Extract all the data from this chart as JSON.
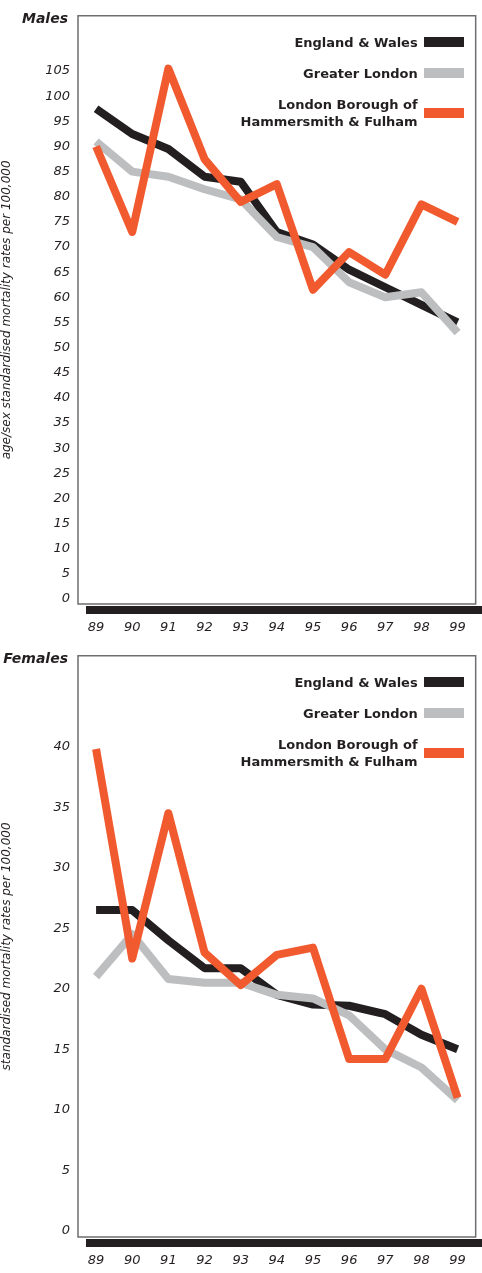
{
  "chart_data": [
    {
      "type": "line",
      "title": "Males",
      "ylabel": "age/sex standardised mortality rates per 100,000",
      "categories": [
        "89",
        "90",
        "91",
        "92",
        "93",
        "94",
        "95",
        "96",
        "97",
        "98",
        "99"
      ],
      "ylim": [
        -1,
        116
      ],
      "yticks": [
        0,
        5,
        10,
        15,
        20,
        25,
        30,
        35,
        40,
        45,
        50,
        55,
        60,
        65,
        70,
        75,
        80,
        85,
        90,
        95,
        100,
        105
      ],
      "legend": "top right",
      "series": [
        {
          "name": "England & Wales",
          "color": "#231f20",
          "values": [
            97.5,
            92.5,
            89.5,
            84,
            83,
            73,
            70.5,
            65.5,
            62,
            58.5,
            55
          ]
        },
        {
          "name": "Greater London",
          "color": "#bcbec0",
          "values": [
            91,
            85,
            84,
            81.5,
            79.5,
            72,
            70,
            63,
            60,
            61,
            53
          ]
        },
        {
          "name": "London Borough of Hammersmith & Fulham",
          "color": "#f15a2e",
          "values": [
            90,
            73,
            105.5,
            87.5,
            79,
            82.5,
            61.5,
            69,
            64.5,
            78.5,
            75
          ]
        }
      ]
    },
    {
      "type": "line",
      "title": "Females",
      "ylabel": "standardised mortality rates per 100,000",
      "categories": [
        "89",
        "90",
        "91",
        "92",
        "93",
        "94",
        "95",
        "96",
        "97",
        "98",
        "99"
      ],
      "ylim": [
        -0.5,
        47.5
      ],
      "yticks": [
        0,
        5,
        10,
        15,
        20,
        25,
        30,
        35,
        40
      ],
      "legend": "top right",
      "series": [
        {
          "name": "England & Wales",
          "color": "#231f20",
          "values": [
            26.5,
            26.5,
            24,
            21.7,
            21.7,
            19.5,
            18.7,
            18.6,
            17.9,
            16.2,
            15
          ]
        },
        {
          "name": "Greater London",
          "color": "#bcbec0",
          "values": [
            21,
            24.5,
            20.8,
            20.5,
            20.5,
            19.5,
            19.2,
            17.8,
            15,
            13.5,
            10.8
          ]
        },
        {
          "name": "London Borough of Hammersmith & Fulham",
          "color": "#f15a2e",
          "values": [
            39.8,
            22.5,
            34.5,
            23,
            20.3,
            22.8,
            23.4,
            14.2,
            14.2,
            20,
            11
          ]
        }
      ]
    }
  ]
}
